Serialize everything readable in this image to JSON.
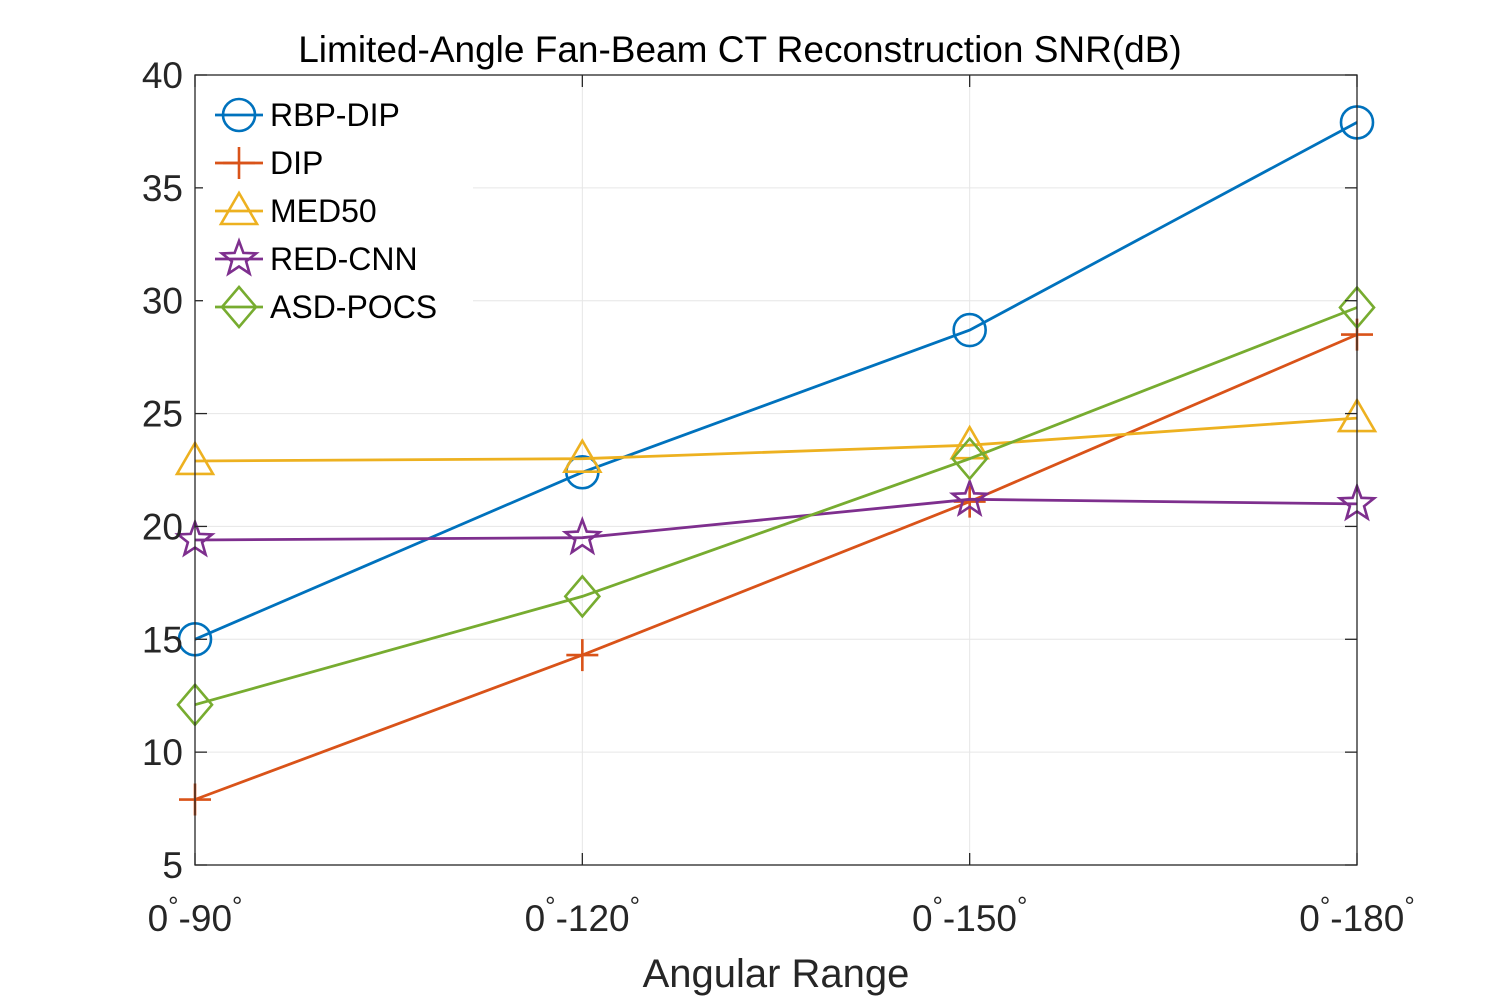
{
  "chart_data": {
    "type": "line",
    "title": "Limited-Angle Fan-Beam CT Reconstruction SNR(dB)",
    "xlabel": "Angular Range",
    "ylabel": "",
    "categories": [
      {
        "start": "0",
        "end": "-90",
        "deg": "°"
      },
      {
        "start": "0",
        "end": "-120",
        "deg": "°"
      },
      {
        "start": "0",
        "end": "-150",
        "deg": "°"
      },
      {
        "start": "0",
        "end": "-180",
        "deg": "°"
      }
    ],
    "ylim": [
      5,
      40
    ],
    "yticks": [
      "5",
      "10",
      "15",
      "20",
      "25",
      "30",
      "35",
      "40"
    ],
    "grid": true,
    "legend_position": "top-left",
    "series": [
      {
        "name": "RBP-DIP",
        "color": "#0072BD",
        "marker": "circle",
        "values": [
          15.0,
          22.4,
          28.7,
          37.9
        ]
      },
      {
        "name": "DIP",
        "color": "#D95319",
        "marker": "plus",
        "values": [
          7.9,
          14.3,
          21.1,
          28.5
        ]
      },
      {
        "name": "MED50",
        "color": "#EDB120",
        "marker": "triangle",
        "values": [
          22.9,
          23.0,
          23.6,
          24.8
        ]
      },
      {
        "name": "RED-CNN",
        "color": "#7E2F8E",
        "marker": "star",
        "values": [
          19.4,
          19.5,
          21.2,
          21.0
        ]
      },
      {
        "name": "ASD-POCS",
        "color": "#77AC30",
        "marker": "diamond",
        "values": [
          12.1,
          16.9,
          23.0,
          29.7
        ]
      }
    ]
  }
}
